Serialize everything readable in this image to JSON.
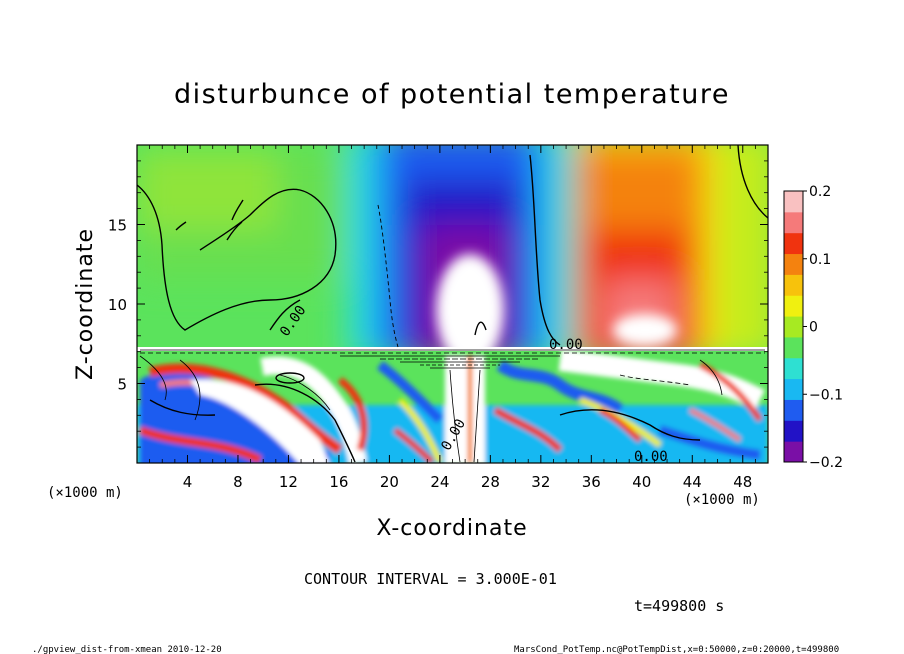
{
  "chart_data": {
    "type": "heatmap",
    "title": "disturbunce of potential temperature",
    "xlabel": "X-coordinate",
    "ylabel": "Z-coordinate",
    "x_unit_left": "(×1000 m)",
    "x_unit_right": "(×1000 m)",
    "xlim": [
      0,
      50
    ],
    "ylim": [
      0,
      20
    ],
    "x_ticks": [
      4,
      8,
      12,
      16,
      20,
      24,
      28,
      32,
      36,
      40,
      44,
      48
    ],
    "y_ticks": [
      5,
      10,
      15
    ],
    "colorbar": {
      "vmin": -0.2,
      "vmax": 0.2,
      "ticks": [
        {
          "value": 0.2,
          "label": "0.2"
        },
        {
          "value": 0.1,
          "label": "0.1"
        },
        {
          "value": 0.0,
          "label": "0"
        },
        {
          "value": -0.1,
          "label": "−0.1"
        },
        {
          "value": -0.2,
          "label": "−0.2"
        }
      ],
      "colors": [
        "#7a0fa6",
        "#2212c6",
        "#1f5cf0",
        "#19b8f2",
        "#2ee0d2",
        "#5be35c",
        "#a7ea22",
        "#f0f010",
        "#f7c20c",
        "#f4820f",
        "#f0330f",
        "#f57a7a",
        "#f9c1c1"
      ]
    },
    "contour_labels": [
      "0.00",
      "0.00",
      "0.00",
      "0.00"
    ],
    "features": [
      {
        "kind": "cold_anomaly",
        "x": 26.5,
        "z_min": 7.5,
        "z_max": 20,
        "value": -0.2
      },
      {
        "kind": "warm_anomaly",
        "x": 40,
        "z_min": 7.5,
        "z_max": 20,
        "value": 0.2
      },
      {
        "kind": "turbulent_layer",
        "z_min": 0,
        "z_max": 7.5
      }
    ]
  },
  "annotations": {
    "contour_interval": "CONTOUR INTERVAL = 3.000E-01",
    "time": "t=499800 s",
    "footer_left": "./gpview_dist-from-xmean  2010-12-20",
    "footer_right": "MarsCond_PotTemp.nc@PotTempDist,x=0:50000,z=0:20000,t=499800"
  }
}
